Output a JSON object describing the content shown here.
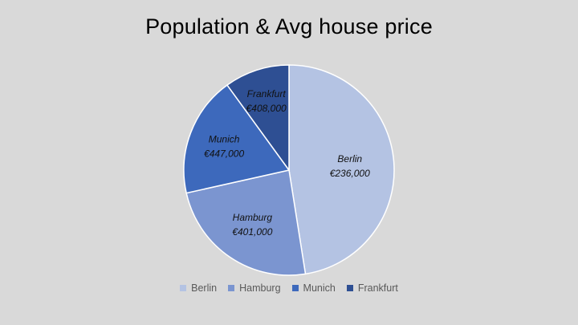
{
  "chart_data": {
    "type": "pie",
    "title": "Population & Avg house price",
    "categories": [
      "Berlin",
      "Hamburg",
      "Munich",
      "Frankfurt"
    ],
    "values": [
      0.475,
      0.24,
      0.185,
      0.1
    ],
    "data_labels": [
      "€236,000",
      "€401,000",
      "€447,000",
      "€408,000"
    ],
    "colors": [
      "#b4c3e3",
      "#7b95d0",
      "#3d69bc",
      "#2e4f93"
    ],
    "legend_position": "bottom",
    "start_angle": "12 o'clock",
    "direction": "clockwise"
  }
}
